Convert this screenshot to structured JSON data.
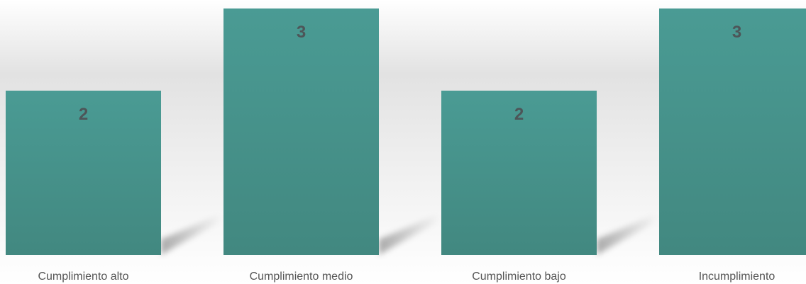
{
  "chart_data": {
    "type": "bar",
    "categories": [
      "Cumplimiento alto",
      "Cumplimiento medio",
      "Cumplimiento bajo",
      "Incumplimiento"
    ],
    "values": [
      2,
      3,
      2,
      3
    ],
    "data_labels": [
      "2",
      "3",
      "2",
      "3"
    ],
    "title": "",
    "xlabel": "",
    "ylabel": "",
    "ylim": [
      0,
      3
    ],
    "grid": false,
    "legend": "none",
    "bar_color": "#4a9b94",
    "bar_color_bottom": "#428880",
    "label_color": "#4d5558",
    "tick_color": "#555555"
  }
}
